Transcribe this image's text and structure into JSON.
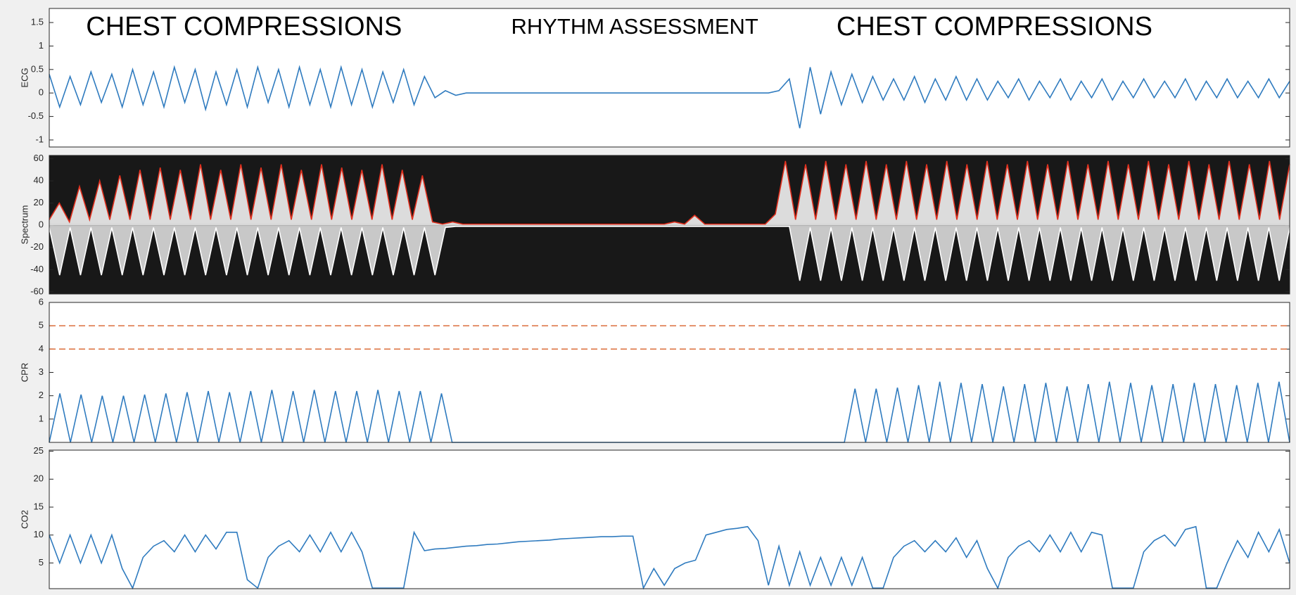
{
  "chart_data": [
    {
      "type": "line",
      "ylabel": "ECG",
      "ylim": [
        -1.15,
        1.8
      ],
      "yticks": [
        -1,
        -0.5,
        0,
        0.5,
        1,
        1.5
      ],
      "annotations": [
        "CHEST COMPRESSIONS",
        "RHYTHM ASSESSMENT",
        "CHEST COMPRESSIONS"
      ],
      "series": [
        {
          "color": "#2f7bbf",
          "values": [
            0.4,
            -0.3,
            0.35,
            -0.25,
            0.45,
            -0.2,
            0.4,
            -0.3,
            0.5,
            -0.25,
            0.45,
            -0.3,
            0.55,
            -0.2,
            0.5,
            -0.35,
            0.45,
            -0.25,
            0.5,
            -0.3,
            0.55,
            -0.2,
            0.5,
            -0.3,
            0.55,
            -0.25,
            0.5,
            -0.3,
            0.55,
            -0.25,
            0.5,
            -0.3,
            0.45,
            -0.2,
            0.5,
            -0.25,
            0.35,
            -0.1,
            0.05,
            -0.05,
            0,
            0,
            0,
            0,
            0,
            0,
            0,
            0,
            0,
            0,
            0,
            0,
            0,
            0,
            0,
            0,
            0,
            0,
            0,
            0,
            0,
            0,
            0,
            0,
            0,
            0,
            0,
            0,
            0,
            0,
            0.05,
            0.3,
            -0.75,
            0.55,
            -0.45,
            0.45,
            -0.25,
            0.4,
            -0.2,
            0.35,
            -0.15,
            0.3,
            -0.15,
            0.35,
            -0.2,
            0.3,
            -0.15,
            0.35,
            -0.15,
            0.3,
            -0.15,
            0.25,
            -0.1,
            0.3,
            -0.15,
            0.25,
            -0.1,
            0.3,
            -0.15,
            0.25,
            -0.1,
            0.3,
            -0.15,
            0.25,
            -0.1,
            0.3,
            -0.1,
            0.25,
            -0.1,
            0.3,
            -0.15,
            0.25,
            -0.1,
            0.3,
            -0.1,
            0.25,
            -0.1,
            0.3,
            -0.1,
            0.25
          ]
        }
      ]
    },
    {
      "type": "spectrogram",
      "ylabel": "Spectrum",
      "ylim": [
        -62,
        63
      ],
      "yticks": [
        -60,
        -40,
        -20,
        0,
        20,
        40,
        60
      ],
      "background": "#181818",
      "series": [
        {
          "color": "#e0301e",
          "area_color": "#ffffff",
          "values": [
            5,
            20,
            3,
            35,
            5,
            40,
            5,
            45,
            5,
            50,
            5,
            52,
            5,
            50,
            5,
            55,
            5,
            50,
            5,
            55,
            5,
            52,
            5,
            55,
            5,
            50,
            5,
            55,
            5,
            52,
            5,
            50,
            5,
            55,
            5,
            50,
            5,
            45,
            3,
            1,
            3,
            1,
            1,
            1,
            1,
            1,
            1,
            1,
            1,
            1,
            1,
            1,
            1,
            1,
            1,
            1,
            1,
            1,
            1,
            1,
            1,
            1,
            3,
            1,
            9,
            1,
            1,
            1,
            1,
            1,
            1,
            1,
            10,
            58,
            5,
            55,
            5,
            58,
            5,
            55,
            5,
            58,
            5,
            55,
            5,
            58,
            5,
            55,
            5,
            58,
            5,
            55,
            5,
            58,
            5,
            55,
            5,
            58,
            5,
            55,
            5,
            58,
            5,
            55,
            5,
            58,
            5,
            55,
            5,
            58,
            5,
            55,
            5,
            58,
            5,
            55,
            5,
            58,
            5,
            55,
            5,
            58,
            5,
            55
          ]
        },
        {
          "color": "#ffffff",
          "area_color": "#e8e8e8",
          "values": [
            -2,
            -45,
            -2,
            -45,
            -2,
            -45,
            -2,
            -45,
            -2,
            -45,
            -2,
            -45,
            -2,
            -45,
            -2,
            -45,
            -2,
            -45,
            -2,
            -45,
            -2,
            -45,
            -2,
            -45,
            -2,
            -45,
            -2,
            -45,
            -2,
            -45,
            -2,
            -45,
            -2,
            -45,
            -2,
            -45,
            -2,
            -45,
            -2,
            -1,
            -1,
            -1,
            -1,
            -1,
            -1,
            -1,
            -1,
            -1,
            -1,
            -1,
            -1,
            -1,
            -1,
            -1,
            -1,
            -1,
            -1,
            -1,
            -1,
            -1,
            -1,
            -1,
            -1,
            -1,
            -1,
            -1,
            -1,
            -1,
            -1,
            -1,
            -1,
            -1,
            -50,
            -2,
            -50,
            -2,
            -50,
            -2,
            -50,
            -2,
            -50,
            -2,
            -50,
            -2,
            -50,
            -2,
            -50,
            -2,
            -50,
            -2,
            -50,
            -2,
            -50,
            -2,
            -50,
            -2,
            -50,
            -2,
            -50,
            -2,
            -50,
            -2,
            -50,
            -2,
            -50,
            -2,
            -50,
            -2,
            -50,
            -2,
            -50,
            -2,
            -50,
            -2,
            -50,
            -2,
            -50,
            -2,
            -50,
            -2
          ]
        }
      ]
    },
    {
      "type": "line",
      "ylabel": "CPR",
      "ylim": [
        0,
        6
      ],
      "yticks": [
        1,
        2,
        3,
        4,
        5,
        6
      ],
      "ref_lines": [
        4,
        5
      ],
      "ref_color": "#d9622b",
      "series": [
        {
          "color": "#2f7bbf",
          "values": [
            0,
            2.1,
            0,
            2.05,
            0,
            2.0,
            0,
            2.0,
            0,
            2.05,
            0,
            2.1,
            0,
            2.15,
            0,
            2.2,
            0,
            2.15,
            0,
            2.2,
            0,
            2.25,
            0,
            2.2,
            0,
            2.25,
            0,
            2.2,
            0,
            2.2,
            0,
            2.25,
            0,
            2.2,
            0,
            2.2,
            0,
            2.1,
            0,
            0,
            0,
            0,
            0,
            0,
            0,
            0,
            0,
            0,
            0,
            0,
            0,
            0,
            0,
            0,
            0,
            0,
            0,
            0,
            0,
            0,
            0,
            0,
            0,
            0,
            0,
            0,
            0,
            0,
            0,
            0,
            0,
            0,
            0,
            0,
            0,
            0,
            2.3,
            0,
            2.3,
            0,
            2.35,
            0,
            2.45,
            0,
            2.6,
            0,
            2.55,
            0,
            2.5,
            0,
            2.4,
            0,
            2.5,
            0,
            2.55,
            0,
            2.4,
            0,
            2.5,
            0,
            2.6,
            0,
            2.55,
            0,
            2.45,
            0,
            2.5,
            0,
            2.55,
            0,
            2.5,
            0,
            2.45,
            0,
            2.55,
            0,
            2.6,
            0
          ]
        }
      ]
    },
    {
      "type": "line",
      "ylabel": "CO2",
      "ylim": [
        0.4,
        25.2
      ],
      "yticks": [
        5,
        10,
        15,
        20,
        25
      ],
      "series": [
        {
          "color": "#2f7bbf",
          "values": [
            10,
            5,
            10,
            5,
            10,
            5,
            10,
            4,
            0.5,
            6,
            8,
            9,
            7,
            10,
            7,
            10,
            7.5,
            10.5,
            10.5,
            2,
            0.5,
            6,
            8,
            9,
            7,
            10,
            7,
            10.5,
            7,
            10.5,
            7,
            0.5,
            0.5,
            0.5,
            0.5,
            10.5,
            7.2,
            7.5,
            7.6,
            7.8,
            8,
            8.1,
            8.3,
            8.4,
            8.6,
            8.8,
            8.9,
            9,
            9.1,
            9.3,
            9.4,
            9.5,
            9.6,
            9.7,
            9.7,
            9.8,
            9.8,
            0.5,
            4,
            1,
            4,
            5,
            5.5,
            10,
            10.5,
            11,
            11.2,
            11.5,
            9,
            1,
            8,
            1,
            7,
            1,
            6,
            1,
            6,
            1,
            6,
            0.5,
            0.5,
            6,
            8,
            9,
            7,
            9,
            7,
            9.5,
            6,
            9,
            4,
            0.5,
            6,
            8,
            9,
            7,
            10,
            7,
            10.5,
            7,
            10.5,
            10,
            0.5,
            0.5,
            0.5,
            7,
            9,
            10,
            8,
            11,
            11.5,
            0.5,
            0.5,
            5,
            9,
            6,
            10.5,
            7,
            11,
            5
          ]
        }
      ]
    }
  ]
}
